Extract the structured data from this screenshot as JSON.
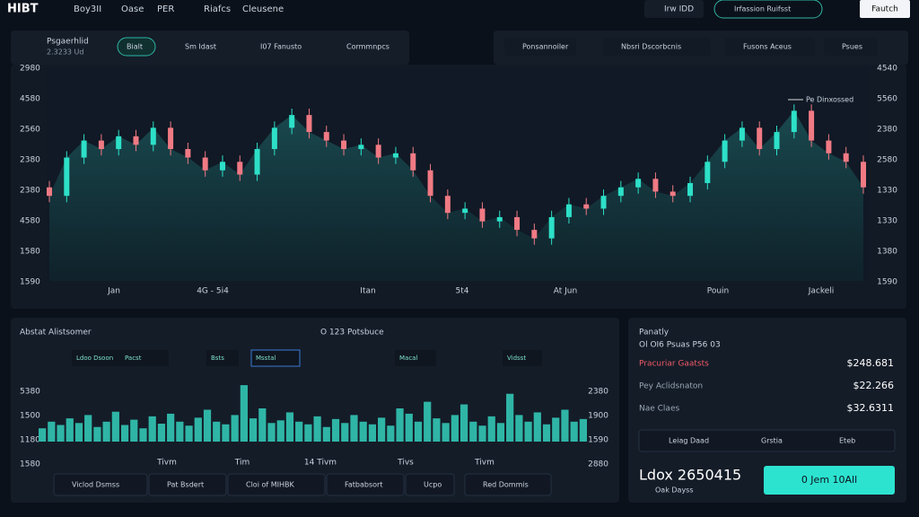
{
  "header": {
    "logo": "HIBT",
    "nav": [
      "Boy3II",
      "Oase",
      "PER",
      "Riafcs",
      "Cleusene"
    ],
    "user": "Irw IDD",
    "account": "Irfassion Ruifsst",
    "search": "Fautch"
  },
  "toolbar": {
    "pair": "Psgaerhlid",
    "pair_sub": "2.3233 Ud",
    "left_buttons": [
      "Bialt",
      "Sm Idast",
      "I07 Fanusto",
      "Cormmnpcs"
    ],
    "right_buttons": [
      "Ponsannoiler",
      "Nbsri Dscorbcnis",
      "Fusons Aceus",
      "Psues"
    ]
  },
  "price_chart": {
    "type": "candlestick",
    "ylim": [
      0,
      100
    ],
    "y_labels_left": [
      "2980",
      "4580",
      "2560",
      "2380",
      "2380",
      "4580",
      "1580",
      "1590"
    ],
    "y_labels_right": [
      "4540",
      "5560",
      "2380",
      "2580",
      "1330",
      "1330",
      "1380",
      "1590"
    ],
    "x_labels": [
      "Jan",
      "4G - 5i4",
      "Itan",
      "5t4",
      "At Jun",
      "Pouin",
      "Jackeli"
    ],
    "annotation": "Pe Dinxossed",
    "open": [
      44,
      40,
      58,
      66,
      62,
      68,
      64,
      72,
      62,
      58,
      52,
      56,
      50,
      62,
      72,
      78,
      70,
      66,
      62,
      64,
      58,
      60,
      52,
      40,
      32,
      34,
      28,
      30,
      24,
      20,
      30,
      36,
      34,
      40,
      44,
      48,
      42,
      40,
      46,
      56,
      66,
      72,
      62,
      70,
      80,
      66,
      60,
      56
    ],
    "close": [
      40,
      58,
      66,
      62,
      68,
      64,
      72,
      62,
      58,
      52,
      56,
      50,
      62,
      72,
      78,
      70,
      66,
      62,
      64,
      58,
      60,
      52,
      40,
      32,
      34,
      28,
      30,
      24,
      20,
      30,
      36,
      34,
      40,
      44,
      48,
      42,
      40,
      46,
      56,
      66,
      72,
      62,
      70,
      80,
      66,
      60,
      56,
      44
    ],
    "high": [
      47,
      61,
      69,
      69,
      71,
      71,
      75,
      75,
      65,
      61,
      59,
      59,
      65,
      75,
      81,
      81,
      73,
      69,
      67,
      67,
      63,
      63,
      55,
      43,
      37,
      37,
      33,
      33,
      27,
      33,
      39,
      39,
      43,
      47,
      51,
      51,
      45,
      49,
      59,
      69,
      75,
      75,
      73,
      83,
      83,
      69,
      63,
      59
    ],
    "low": [
      37,
      37,
      55,
      59,
      59,
      61,
      61,
      59,
      55,
      49,
      49,
      47,
      47,
      59,
      69,
      67,
      63,
      59,
      59,
      55,
      55,
      49,
      37,
      29,
      29,
      25,
      25,
      21,
      17,
      17,
      27,
      31,
      31,
      37,
      41,
      39,
      37,
      37,
      43,
      53,
      63,
      59,
      59,
      67,
      63,
      57,
      53,
      41
    ],
    "up_color": "#2de0c8",
    "down_color": "#f07a84"
  },
  "volume_panel": {
    "title": "Abstat Alistsomer",
    "title2": "O 123 Potsbuce",
    "tabs": [
      "Ldoo Dsoon",
      "Pacst",
      "Bsts",
      "Msstal",
      "Macal",
      "Vidsst"
    ],
    "y_labels_left": [
      "5380",
      "1500",
      "1180",
      "1580"
    ],
    "y_labels_right": [
      "2380",
      "1900",
      "1590",
      "2880"
    ],
    "x_labels": [
      "Tivm",
      "Tim",
      "14 Tivm",
      "Tivs",
      "Tivm"
    ],
    "buttons": [
      "Viclod Dsmss",
      "Pat Bsdert",
      "Cloi of MIHBK",
      "Fatbabsort",
      "Ucpo",
      "Red Dommis"
    ],
    "ylim": [
      0,
      100
    ],
    "color": "#2fb5a6",
    "values": [
      20,
      30,
      25,
      35,
      28,
      40,
      22,
      30,
      45,
      25,
      33,
      20,
      38,
      27,
      42,
      30,
      24,
      36,
      48,
      30,
      26,
      40,
      85,
      35,
      50,
      28,
      32,
      44,
      30,
      26,
      38,
      22,
      34,
      28,
      40,
      30,
      26,
      36,
      24,
      50,
      42,
      30,
      60,
      35,
      28,
      40,
      56,
      30,
      24,
      38,
      28,
      72,
      40,
      30,
      44,
      26,
      36,
      48,
      30,
      34
    ]
  },
  "side_panel": {
    "title": "Panatly",
    "subtitle": "Ol OI6 Psuas P56 03",
    "rows": [
      [
        "Pracuriar Gaatsts",
        "$248.681"
      ],
      [
        "Pey Aclidsnaton",
        "$22.266"
      ],
      [
        "Nae Claes",
        "$32.6311"
      ]
    ],
    "buttons": [
      "Leiag Daad",
      "Grstia",
      "Eteb"
    ],
    "total": "Ldox 2650415",
    "total_sub": "Oak Dayss",
    "action": "0 Jem 10All"
  }
}
